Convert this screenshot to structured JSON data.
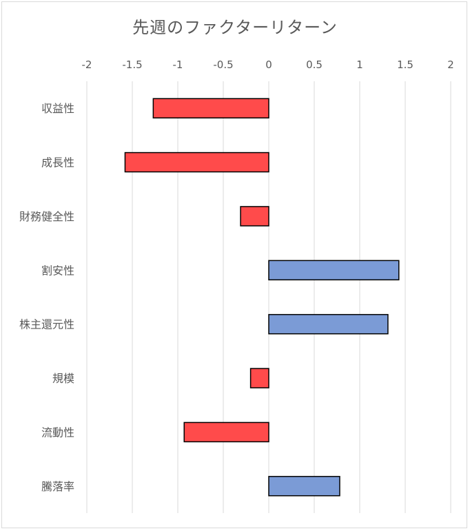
{
  "chart_data": {
    "type": "bar",
    "orientation": "horizontal",
    "title": "先週のファクターリターン",
    "categories": [
      "収益性",
      "成長性",
      "財務健全性",
      "割安性",
      "株主還元性",
      "規模",
      "流動性",
      "騰落率"
    ],
    "values": [
      -1.27,
      -1.58,
      -0.31,
      1.43,
      1.31,
      -0.2,
      -0.93,
      0.78
    ],
    "xlim": [
      -2,
      2
    ],
    "x_ticks": [
      "-2",
      "-1.5",
      "-1",
      "-0.5",
      "0",
      "0.5",
      "1",
      "1.5",
      "2"
    ],
    "x_axis_position": "top",
    "grid": true,
    "legend": "none",
    "colors": {
      "negative": "#ff4b4b",
      "positive": "#7b9bd6",
      "outline": "#000000",
      "grid": "#d9d9d9"
    }
  }
}
